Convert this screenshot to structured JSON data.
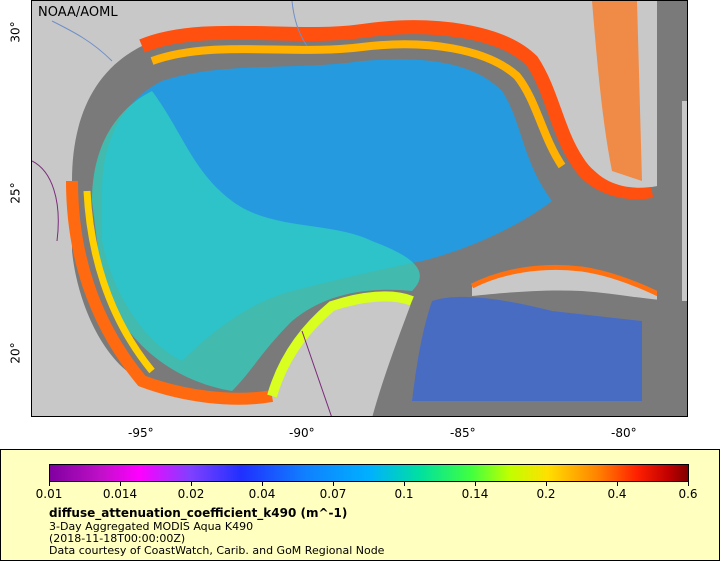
{
  "credit": "NOAA/AOML",
  "x_ticks": [
    "-95°",
    "-90°",
    "-85°",
    "-80°"
  ],
  "y_ticks": [
    "30°",
    "25°",
    "20°"
  ],
  "colorbar": {
    "ticks": [
      "0.01",
      "0.014",
      "0.02",
      "0.04",
      "0.07",
      "0.1",
      "0.14",
      "0.2",
      "0.4",
      "0.6"
    ]
  },
  "legend": {
    "variable": "diffuse_attenuation_coefficient_k490 (m^-1)",
    "line1": "3-Day Aggregated MODIS Aqua K490",
    "line2": "(2018-11-18T00:00:00Z)",
    "line3": "Data courtesy of CoastWatch, Carib. and GoM Regional Node"
  },
  "colors": {
    "land": "#c8c8c8",
    "no_data": "#7a7a7a",
    "legend_bg": "#ffffc0"
  }
}
